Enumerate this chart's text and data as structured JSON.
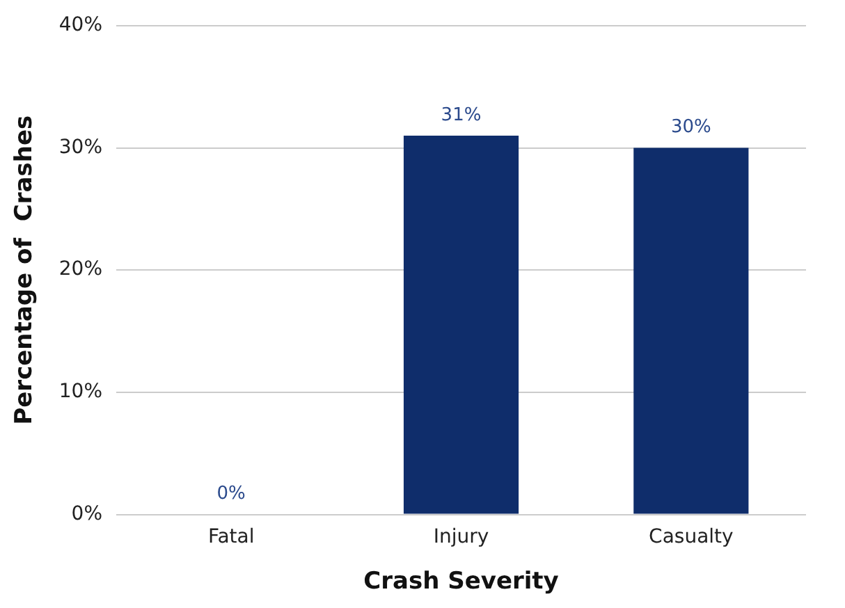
{
  "chart_data": {
    "type": "bar",
    "xlabel": "Crash Severity",
    "ylabel": "Percentage of  Crashes",
    "categories": [
      "Fatal",
      "Injury",
      "Casualty"
    ],
    "values": [
      0,
      31,
      30
    ],
    "color": "#0f2d6b",
    "value_labels": [
      "0%",
      "31%",
      "30%"
    ],
    "ylim": [
      0,
      40
    ],
    "yticks": [
      {
        "value": 0,
        "label": "0%"
      },
      {
        "value": 10,
        "label": "10%"
      },
      {
        "value": 20,
        "label": "20%"
      },
      {
        "value": 30,
        "label": "30%"
      },
      {
        "value": 40,
        "label": "40%"
      }
    ],
    "grid": "y",
    "legend": false
  }
}
